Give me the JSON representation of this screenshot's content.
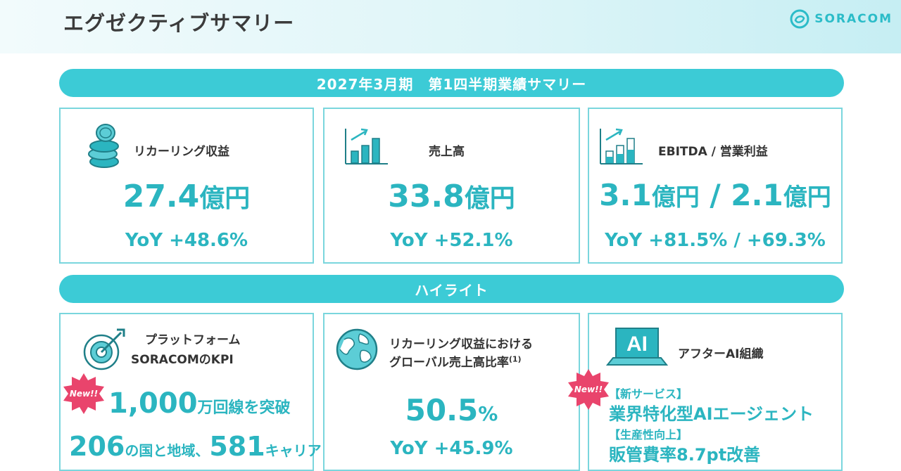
{
  "header": {
    "title": "エグゼクティブサマリー",
    "logo_text": "SORACOM",
    "brand_color": "#3ccbd6"
  },
  "banners": {
    "summary": "2027年3月期　第1四半期業績サマリー",
    "highlights": "ハイライト"
  },
  "kpis": [
    {
      "label": "リカーリング収益",
      "value": "27.4",
      "unit": "億円",
      "yoy": "YoY +48.6%"
    },
    {
      "label": "売上高",
      "value": "33.8",
      "unit": "億円",
      "yoy": "YoY +52.1%"
    },
    {
      "label": "EBITDA / 営業利益",
      "value_a": "3.1",
      "unit_a": "億円",
      "sep": " /",
      "value_b": "2.1",
      "unit_b": "億円",
      "yoy": "YoY +81.5% / +69.3%"
    }
  ],
  "highlights": [
    {
      "label_line1": "プラットフォーム",
      "label_line2": "SORACOMのKPI",
      "badge": "New!!",
      "main_num": "1,000",
      "main_text": "万回線を突破",
      "sub_num1": "206",
      "sub_text1": "の国と地域、",
      "sub_num2": "581",
      "sub_text2": "キャリア"
    },
    {
      "label_line1": "リカーリング収益における",
      "label_line2": "グローバル売上高比率",
      "footnote": "(1)",
      "value": "50.5",
      "unit": "%",
      "yoy": "YoY +45.9%"
    },
    {
      "label": "アフターAI組織",
      "icon_text": "AI",
      "badge": "New!!",
      "tag1": "【新サービス】",
      "line1": "業界特化型AIエージェント",
      "tag2": "【生産性向上】",
      "line2": "販管費率8.7pt改善"
    }
  ]
}
